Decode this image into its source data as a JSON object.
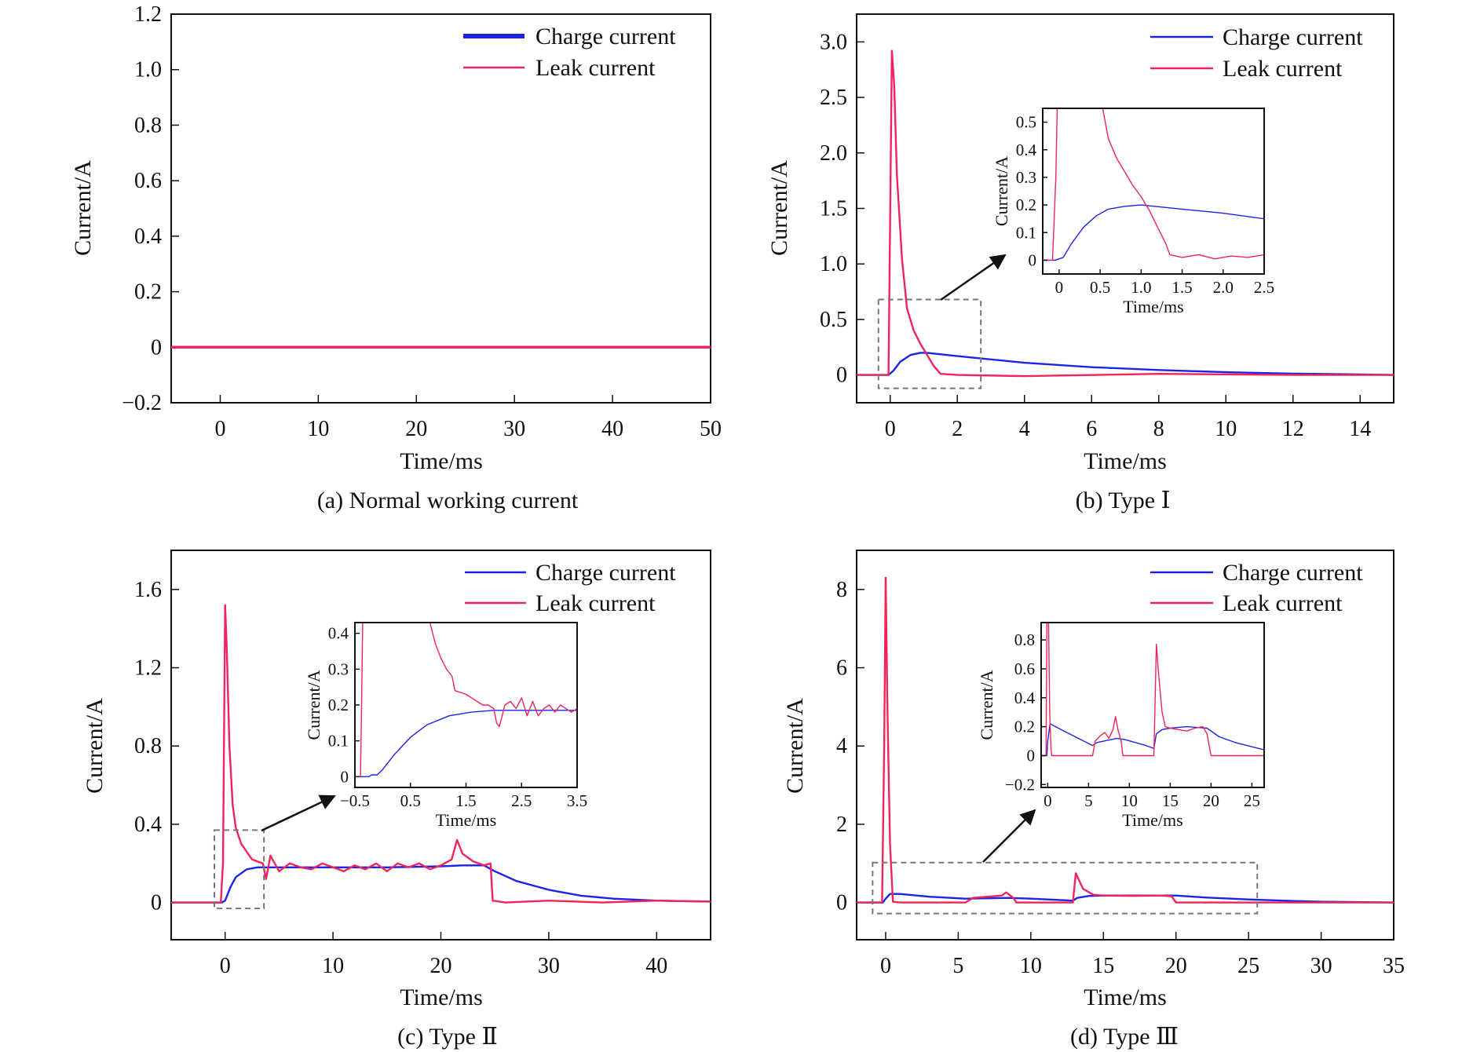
{
  "colors": {
    "charge": "#1d23e8",
    "leak": "#f0245a",
    "inset_line": "#666666",
    "axis": "#111111"
  },
  "legend": {
    "charge": "Charge current",
    "leak": "Leak current"
  },
  "chart_data": [
    {
      "id": "a",
      "type": "line",
      "caption": "(a) Normal working current",
      "xlabel": "Time/ms",
      "ylabel": "Current/A",
      "xlim": [
        -5,
        50
      ],
      "ylim": [
        -0.2,
        1.2
      ],
      "xticks": [
        0,
        10,
        20,
        30,
        40,
        50
      ],
      "xtick_labels": [
        "0",
        "10",
        "20",
        "30",
        "40",
        "50"
      ],
      "yticks": [
        -0.2,
        0,
        0.2,
        0.4,
        0.6,
        0.8,
        1.0,
        1.2
      ],
      "ytick_labels": [
        "−0.2",
        "0",
        "0.2",
        "0.4",
        "0.6",
        "0.8",
        "1.0",
        "1.2"
      ],
      "legend_position": "top-right",
      "series": [
        {
          "name": "Charge current",
          "role": "charge",
          "x": [
            -5,
            50
          ],
          "y": [
            0,
            0
          ]
        },
        {
          "name": "Leak current",
          "role": "leak",
          "x": [
            -5,
            50
          ],
          "y": [
            0,
            0
          ]
        }
      ]
    },
    {
      "id": "b",
      "type": "line",
      "caption": "(b) Type Ⅰ",
      "xlabel": "Time/ms",
      "ylabel": "Current/A",
      "xlim": [
        -1,
        15
      ],
      "ylim": [
        -0.25,
        3.25
      ],
      "xticks": [
        0,
        2,
        4,
        6,
        8,
        10,
        12,
        14
      ],
      "xtick_labels": [
        "0",
        "2",
        "4",
        "6",
        "8",
        "10",
        "12",
        "14"
      ],
      "yticks": [
        0,
        0.5,
        1.0,
        1.5,
        2.0,
        2.5,
        3.0
      ],
      "ytick_labels": [
        "0",
        "0.5",
        "1.0",
        "1.5",
        "2.0",
        "2.5",
        "3.0"
      ],
      "legend_position": "top-right",
      "zoom_box": {
        "x": [
          -0.35,
          2.7
        ],
        "y": [
          -0.12,
          0.68
        ]
      },
      "series": [
        {
          "name": "Charge current",
          "role": "charge",
          "x": [
            -1,
            -0.05,
            0.1,
            0.3,
            0.6,
            0.9,
            1.1,
            2,
            3,
            4,
            6,
            8,
            10,
            12,
            14,
            15
          ],
          "y": [
            0,
            0,
            0.04,
            0.12,
            0.18,
            0.2,
            0.2,
            0.17,
            0.14,
            0.11,
            0.07,
            0.045,
            0.025,
            0.012,
            0.005,
            0
          ]
        },
        {
          "name": "Leak current",
          "role": "leak",
          "x": [
            -1,
            -0.05,
            0,
            0.05,
            0.12,
            0.2,
            0.35,
            0.5,
            0.7,
            0.9,
            1.1,
            1.3,
            1.5,
            2,
            4,
            8,
            12,
            15
          ],
          "y": [
            0,
            0,
            1.5,
            2.92,
            2.6,
            1.8,
            1.05,
            0.6,
            0.4,
            0.28,
            0.18,
            0.08,
            0.01,
            0,
            -0.01,
            0.01,
            0,
            0
          ]
        }
      ],
      "inset": {
        "xlabel": "Time/ms",
        "ylabel": "Current/A",
        "xlim": [
          -0.2,
          2.5
        ],
        "ylim": [
          -0.05,
          0.55
        ],
        "xticks": [
          0,
          0.5,
          1.0,
          1.5,
          2.0,
          2.5
        ],
        "xtick_labels": [
          "0",
          "0.5",
          "1.0",
          "1.5",
          "2.0",
          "2.5"
        ],
        "yticks": [
          0,
          0.1,
          0.2,
          0.3,
          0.4,
          0.5
        ],
        "ytick_labels": [
          "0",
          "0.1",
          "0.2",
          "0.3",
          "0.4",
          "0.5"
        ],
        "series": [
          {
            "role": "charge",
            "x": [
              -0.2,
              -0.05,
              0.05,
              0.15,
              0.3,
              0.45,
              0.6,
              0.8,
              1.0,
              1.5,
              2.0,
              2.5
            ],
            "y": [
              0,
              0,
              0.01,
              0.06,
              0.12,
              0.16,
              0.185,
              0.195,
              0.2,
              0.185,
              0.17,
              0.15
            ]
          },
          {
            "role": "leak",
            "x": [
              -0.2,
              -0.08,
              -0.04,
              -0.02,
              0.5,
              0.6,
              0.7,
              0.8,
              0.9,
              1.0,
              1.1,
              1.2,
              1.3,
              1.35,
              1.5,
              1.7,
              1.9,
              2.1,
              2.3,
              2.5
            ],
            "y": [
              0,
              0,
              0.3,
              0.6,
              0.6,
              0.44,
              0.37,
              0.32,
              0.27,
              0.23,
              0.18,
              0.12,
              0.06,
              0.02,
              0.01,
              0.02,
              0.005,
              0.015,
              0.01,
              0.02
            ]
          }
        ]
      }
    },
    {
      "id": "c",
      "type": "line",
      "caption": "(c) Type Ⅱ",
      "xlabel": "Time/ms",
      "ylabel": "Current/A",
      "xlim": [
        -5,
        45
      ],
      "ylim": [
        -0.19,
        1.8
      ],
      "xticks": [
        0,
        10,
        20,
        30,
        40
      ],
      "xtick_labels": [
        "0",
        "10",
        "20",
        "30",
        "40"
      ],
      "yticks": [
        0,
        0.4,
        0.8,
        1.2,
        1.6
      ],
      "ytick_labels": [
        "0",
        "0.4",
        "0.8",
        "1.2",
        "1.6"
      ],
      "legend_position": "top-right",
      "zoom_box": {
        "x": [
          -1,
          3.6
        ],
        "y": [
          -0.03,
          0.37
        ]
      },
      "series": [
        {
          "name": "Charge current",
          "role": "charge",
          "x": [
            -5,
            -0.3,
            0,
            0.5,
            1,
            2,
            3,
            5,
            10,
            15,
            20,
            22,
            24,
            25,
            27,
            30,
            33,
            36,
            40,
            45
          ],
          "y": [
            0,
            0,
            0.01,
            0.08,
            0.13,
            0.17,
            0.18,
            0.18,
            0.18,
            0.18,
            0.185,
            0.19,
            0.19,
            0.16,
            0.11,
            0.065,
            0.035,
            0.02,
            0.01,
            0.005
          ]
        },
        {
          "name": "Leak current",
          "role": "leak",
          "x": [
            -5,
            -0.4,
            -0.2,
            0,
            0.15,
            0.4,
            0.7,
            1,
            1.5,
            2,
            2.5,
            3,
            3.5,
            3.8,
            4.2,
            5,
            6,
            7,
            8,
            9,
            10,
            11,
            12,
            13,
            14,
            15,
            16,
            17,
            18,
            19,
            20,
            21,
            21.5,
            22,
            23,
            24,
            24.6,
            24.8,
            26,
            30,
            35,
            40,
            45
          ],
          "y": [
            0,
            0,
            0.2,
            1.52,
            1.3,
            0.8,
            0.5,
            0.38,
            0.3,
            0.26,
            0.22,
            0.21,
            0.2,
            0.12,
            0.24,
            0.16,
            0.2,
            0.18,
            0.17,
            0.2,
            0.18,
            0.16,
            0.19,
            0.17,
            0.2,
            0.16,
            0.2,
            0.18,
            0.2,
            0.17,
            0.19,
            0.22,
            0.32,
            0.25,
            0.21,
            0.19,
            0.2,
            0.01,
            0,
            0.01,
            0,
            0.01,
            0.005
          ]
        }
      ],
      "inset": {
        "xlabel": "Time/ms",
        "ylabel": "Current/A",
        "xlim": [
          -0.5,
          3.5
        ],
        "ylim": [
          -0.03,
          0.43
        ],
        "xticks": [
          -0.5,
          0.5,
          1.5,
          2.5,
          3.5
        ],
        "xtick_labels": [
          "−0.5",
          "0.5",
          "1.5",
          "2.5",
          "3.5"
        ],
        "yticks": [
          0,
          0.1,
          0.2,
          0.3,
          0.4
        ],
        "ytick_labels": [
          "0",
          "0.1",
          "0.2",
          "0.3",
          "0.4"
        ],
        "series": [
          {
            "role": "charge",
            "x": [
              -0.5,
              -0.25,
              -0.2,
              -0.1,
              0,
              0.2,
              0.5,
              0.8,
              1.2,
              1.6,
              2.0,
              2.5,
              3.0,
              3.5
            ],
            "y": [
              0,
              0,
              0.005,
              0.005,
              0.02,
              0.06,
              0.11,
              0.145,
              0.17,
              0.18,
              0.185,
              0.185,
              0.185,
              0.185
            ]
          },
          {
            "role": "leak",
            "x": [
              -0.5,
              -0.4,
              -0.38,
              -0.36,
              0.85,
              0.95,
              1.05,
              1.15,
              1.25,
              1.3,
              1.5,
              1.7,
              1.8,
              1.9,
              2.0,
              2.05,
              2.1,
              2.2,
              2.3,
              2.4,
              2.5,
              2.6,
              2.7,
              2.8,
              2.9,
              3.0,
              3.1,
              3.2,
              3.3,
              3.4,
              3.5
            ],
            "y": [
              0,
              0,
              0.2,
              0.43,
              0.43,
              0.37,
              0.33,
              0.3,
              0.28,
              0.24,
              0.23,
              0.21,
              0.2,
              0.2,
              0.19,
              0.15,
              0.14,
              0.2,
              0.21,
              0.19,
              0.22,
              0.17,
              0.21,
              0.17,
              0.19,
              0.2,
              0.18,
              0.2,
              0.19,
              0.18,
              0.19
            ]
          }
        ]
      }
    },
    {
      "id": "d",
      "type": "line",
      "caption": "(d) Type Ⅲ",
      "xlabel": "Time/ms",
      "ylabel": "Current/A",
      "xlim": [
        -2,
        35
      ],
      "ylim": [
        -0.95,
        9.0
      ],
      "xticks": [
        0,
        5,
        10,
        15,
        20,
        25,
        30,
        35
      ],
      "xtick_labels": [
        "0",
        "5",
        "10",
        "15",
        "20",
        "25",
        "30",
        "35"
      ],
      "yticks": [
        0,
        2,
        4,
        6,
        8
      ],
      "ytick_labels": [
        "0",
        "2",
        "4",
        "6",
        "8"
      ],
      "legend_position": "top-right",
      "zoom_box": {
        "x": [
          -0.9,
          25.6
        ],
        "y": [
          -0.28,
          1.02
        ]
      },
      "series": [
        {
          "name": "Charge current",
          "role": "charge",
          "x": [
            -2,
            -0.2,
            0,
            0.3,
            1,
            3,
            5.5,
            8.5,
            10,
            12.9,
            13.2,
            14,
            15,
            17,
            20,
            22,
            25,
            28,
            30,
            35
          ],
          "y": [
            0,
            0,
            0.1,
            0.22,
            0.22,
            0.15,
            0.1,
            0.12,
            0.1,
            0.05,
            0.12,
            0.17,
            0.18,
            0.18,
            0.18,
            0.13,
            0.08,
            0.04,
            0.02,
            0
          ]
        },
        {
          "name": "Leak current",
          "role": "leak",
          "x": [
            -2,
            -0.25,
            -0.1,
            0,
            0.12,
            0.3,
            0.5,
            1,
            5.5,
            6,
            7,
            8,
            8.3,
            8.8,
            9,
            12.9,
            13.1,
            13.6,
            14.3,
            15,
            17,
            19,
            19.7,
            20,
            35
          ],
          "y": [
            0,
            0,
            4,
            8.3,
            5,
            1.5,
            0.02,
            0,
            0,
            0.12,
            0.15,
            0.18,
            0.26,
            0.12,
            0,
            0,
            0.75,
            0.35,
            0.2,
            0.18,
            0.17,
            0.18,
            0.16,
            0,
            0
          ]
        }
      ],
      "inset": {
        "xlabel": "Time/ms",
        "ylabel": "Current/A",
        "xlim": [
          -0.8,
          26.5
        ],
        "ylim": [
          -0.22,
          0.92
        ],
        "xticks": [
          0,
          5,
          10,
          15,
          20,
          25
        ],
        "xtick_labels": [
          "0",
          "5",
          "10",
          "15",
          "20",
          "25"
        ],
        "yticks": [
          -0.2,
          0,
          0.2,
          0.4,
          0.6,
          0.8
        ],
        "ytick_labels": [
          "−0.2",
          "0",
          "0.2",
          "0.4",
          "0.6",
          "0.8"
        ],
        "series": [
          {
            "role": "charge",
            "x": [
              -0.8,
              -0.1,
              0,
              0.3,
              2,
              5.5,
              6,
              8.5,
              9.5,
              12,
              13,
              13.3,
              14,
              15,
              17,
              19.5,
              21,
              23,
              26.5
            ],
            "y": [
              0,
              0,
              0.1,
              0.22,
              0.17,
              0.07,
              0.09,
              0.12,
              0.11,
              0.07,
              0.05,
              0.15,
              0.18,
              0.19,
              0.2,
              0.19,
              0.13,
              0.09,
              0.04
            ]
          },
          {
            "role": "leak",
            "x": [
              -0.8,
              -0.2,
              -0.1,
              0.1,
              0.25,
              0.4,
              0.5,
              5.5,
              5.8,
              6.5,
              7,
              7.5,
              8,
              8.3,
              8.6,
              9,
              9.2,
              13,
              13.3,
              13.6,
              14,
              14.4,
              15,
              16,
              17,
              18,
              19,
              19.5,
              20,
              26.5
            ],
            "y": [
              0,
              0,
              0.92,
              0.92,
              0.3,
              0.05,
              0,
              0,
              0.1,
              0.14,
              0.16,
              0.12,
              0.18,
              0.27,
              0.18,
              0.1,
              0,
              0,
              0.77,
              0.55,
              0.3,
              0.2,
              0.19,
              0.18,
              0.17,
              0.19,
              0.2,
              0.15,
              0,
              0
            ]
          }
        ]
      }
    }
  ]
}
